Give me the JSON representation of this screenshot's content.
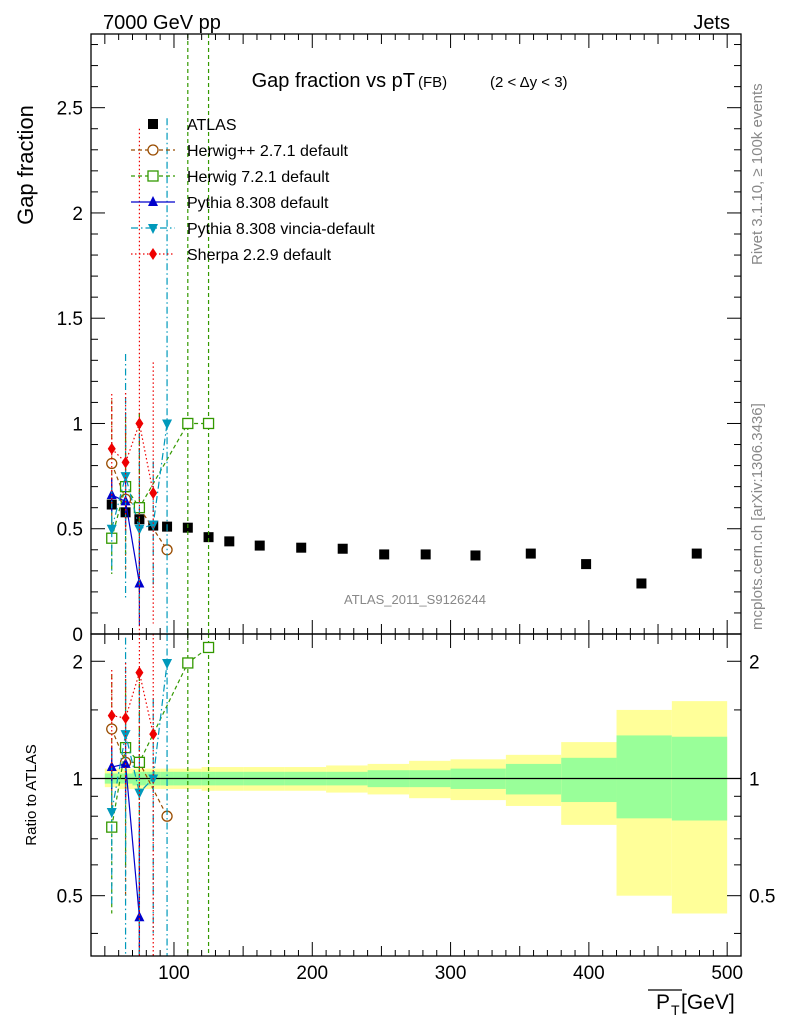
{
  "header": {
    "left": "7000 GeV pp",
    "right": "Jets"
  },
  "side_labels": {
    "rivet": "Rivet 3.1.10, ≥ 100k events",
    "mcplots": "mcplots.cern.ch [arXiv:1306.3436]"
  },
  "chart_data": [
    {
      "type": "scatter",
      "panel": "main",
      "title_main": "Gap fraction vs pT",
      "title_sub": "(FB)",
      "title_range": "(2 < Δy < 3)",
      "ylabel": "Gap fraction",
      "analysis_label": "ATLAS_2011_S9126244",
      "xlim": [
        40,
        510
      ],
      "ylim": [
        0,
        2.85
      ],
      "yticks": [
        0,
        0.5,
        1,
        1.5,
        2,
        2.5
      ],
      "ytick_labels": [
        "0",
        "0.5",
        "1",
        "1.5",
        "2",
        "2.5"
      ],
      "series": [
        {
          "name": "ATLAS",
          "color": "#000000",
          "marker": "square-filled",
          "style": "none",
          "x": [
            55,
            65,
            75,
            85,
            95,
            110,
            125,
            140,
            162,
            192,
            222,
            252,
            282,
            318,
            358,
            398,
            438,
            478
          ],
          "y": [
            0.615,
            0.578,
            0.545,
            0.515,
            0.51,
            0.505,
            0.46,
            0.44,
            0.42,
            0.41,
            0.405,
            0.378,
            0.378,
            0.373,
            0.382,
            0.332,
            0.24,
            0.382
          ],
          "err": [
            0.02,
            0.02,
            0.02,
            0.02,
            0.02,
            0.02,
            0.02,
            0.015,
            0.015,
            0.015,
            0.015,
            0.015,
            0.015,
            0.015,
            0.015,
            0.015,
            0.015,
            0.015
          ]
        },
        {
          "name": "Herwig++ 2.7.1 default",
          "color": "#994c00",
          "marker": "circle-open",
          "style": "dash",
          "x": [
            55,
            65,
            75,
            95
          ],
          "y": [
            0.81,
            0.64,
            0.6,
            0.4
          ],
          "err": [
            0.3,
            0.35,
            0.45,
            0.0
          ]
        },
        {
          "name": "Herwig 7.2.1 default",
          "color": "#339900",
          "marker": "square-open",
          "style": "dash",
          "x": [
            55,
            65,
            75,
            110,
            125
          ],
          "y": [
            0.455,
            0.7,
            0.6,
            1.0,
            1.0
          ],
          "err": [
            0.17,
            0.33,
            0.45,
            2.0,
            2.0
          ]
        },
        {
          "name": "Pythia 8.308 default",
          "color": "#0000cc",
          "marker": "triangle-up",
          "style": "solid",
          "x": [
            55,
            65,
            75
          ],
          "y": [
            0.66,
            0.63,
            0.24
          ],
          "err": [
            0.08,
            0.12,
            0.2
          ]
        },
        {
          "name": "Pythia 8.308 vincia-default",
          "color": "#0099bb",
          "marker": "triangle-down",
          "style": "dashdot",
          "x": [
            55,
            65,
            75,
            85,
            95
          ],
          "y": [
            0.5,
            0.75,
            0.5,
            0.52,
            1.0
          ],
          "err": [
            0.2,
            0.58,
            0.45,
            0.3,
            1.45
          ]
        },
        {
          "name": "Sherpa 2.2.9 default",
          "color": "#ee0000",
          "marker": "diamond",
          "style": "dot",
          "x": [
            55,
            65,
            75,
            85
          ],
          "y": [
            0.88,
            0.815,
            1.0,
            0.67
          ],
          "err": [
            0.26,
            0.33,
            1.4,
            0.62
          ]
        }
      ]
    },
    {
      "type": "scatter",
      "panel": "ratio",
      "ylabel": "Ratio to ATLAS",
      "xlabel": "P_T [GeV]",
      "xlabel_main": "P",
      "xlabel_sub": "T",
      "xlabel_unit": "[GeV]",
      "xlim": [
        40,
        510
      ],
      "ylim": [
        0.35,
        2.35
      ],
      "xticks": [
        100,
        200,
        300,
        400,
        500
      ],
      "xtick_labels": [
        "100",
        "200",
        "300",
        "400",
        "500"
      ],
      "yticks": [
        0.5,
        1,
        2
      ],
      "ytick_labels": [
        "0.5",
        "1",
        "2"
      ],
      "bands": {
        "edges": [
          50,
          60,
          70,
          80,
          90,
          100,
          120,
          130,
          150,
          180,
          210,
          240,
          270,
          300,
          340,
          380,
          420,
          460,
          500
        ],
        "stat_lo": [
          0.97,
          0.97,
          0.96,
          0.96,
          0.96,
          0.96,
          0.96,
          0.96,
          0.96,
          0.96,
          0.96,
          0.95,
          0.95,
          0.94,
          0.91,
          0.87,
          0.79,
          0.78
        ],
        "stat_hi": [
          1.03,
          1.03,
          1.04,
          1.04,
          1.04,
          1.04,
          1.04,
          1.04,
          1.04,
          1.04,
          1.04,
          1.05,
          1.05,
          1.06,
          1.09,
          1.13,
          1.29,
          1.28
        ],
        "tot_lo": [
          0.95,
          0.94,
          0.94,
          0.94,
          0.94,
          0.94,
          0.93,
          0.93,
          0.93,
          0.93,
          0.92,
          0.91,
          0.89,
          0.88,
          0.85,
          0.76,
          0.5,
          0.45
        ],
        "tot_hi": [
          1.06,
          1.06,
          1.06,
          1.06,
          1.06,
          1.06,
          1.07,
          1.07,
          1.07,
          1.07,
          1.08,
          1.09,
          1.11,
          1.12,
          1.15,
          1.24,
          1.5,
          1.58
        ]
      },
      "series": [
        {
          "name": "Herwig++ 2.7.1 default",
          "color": "#994c00",
          "marker": "circle-open",
          "style": "dash",
          "x": [
            55,
            65,
            75,
            95
          ],
          "y": [
            1.34,
            1.1,
            1.1,
            0.8
          ],
          "err": [
            0.5,
            0.6,
            0.8,
            0.0
          ]
        },
        {
          "name": "Herwig 7.2.1 default",
          "color": "#339900",
          "marker": "square-open",
          "style": "dash",
          "x": [
            55,
            65,
            75,
            110,
            125
          ],
          "y": [
            0.75,
            1.2,
            1.1,
            1.98,
            2.17
          ],
          "err": [
            0.3,
            0.6,
            0.8,
            3.0,
            3.0
          ]
        },
        {
          "name": "Pythia 8.308 default",
          "color": "#0000cc",
          "marker": "triangle-up",
          "style": "solid",
          "x": [
            55,
            65,
            75
          ],
          "y": [
            1.07,
            1.09,
            0.44
          ],
          "err": [
            0.13,
            0.2,
            0.35
          ]
        },
        {
          "name": "Pythia 8.308 vincia-default",
          "color": "#0099bb",
          "marker": "triangle-down",
          "style": "dashdot",
          "x": [
            55,
            65,
            75,
            85,
            95
          ],
          "y": [
            0.82,
            1.3,
            0.92,
            1.0,
            1.98
          ],
          "err": [
            0.35,
            1.0,
            0.8,
            0.6,
            3.0
          ]
        },
        {
          "name": "Sherpa 2.2.9 default",
          "color": "#ee0000",
          "marker": "diamond",
          "style": "dot",
          "x": [
            55,
            65,
            75,
            85
          ],
          "y": [
            1.45,
            1.43,
            1.87,
            1.3
          ],
          "err": [
            0.45,
            0.55,
            2.2,
            1.2
          ]
        }
      ]
    }
  ]
}
